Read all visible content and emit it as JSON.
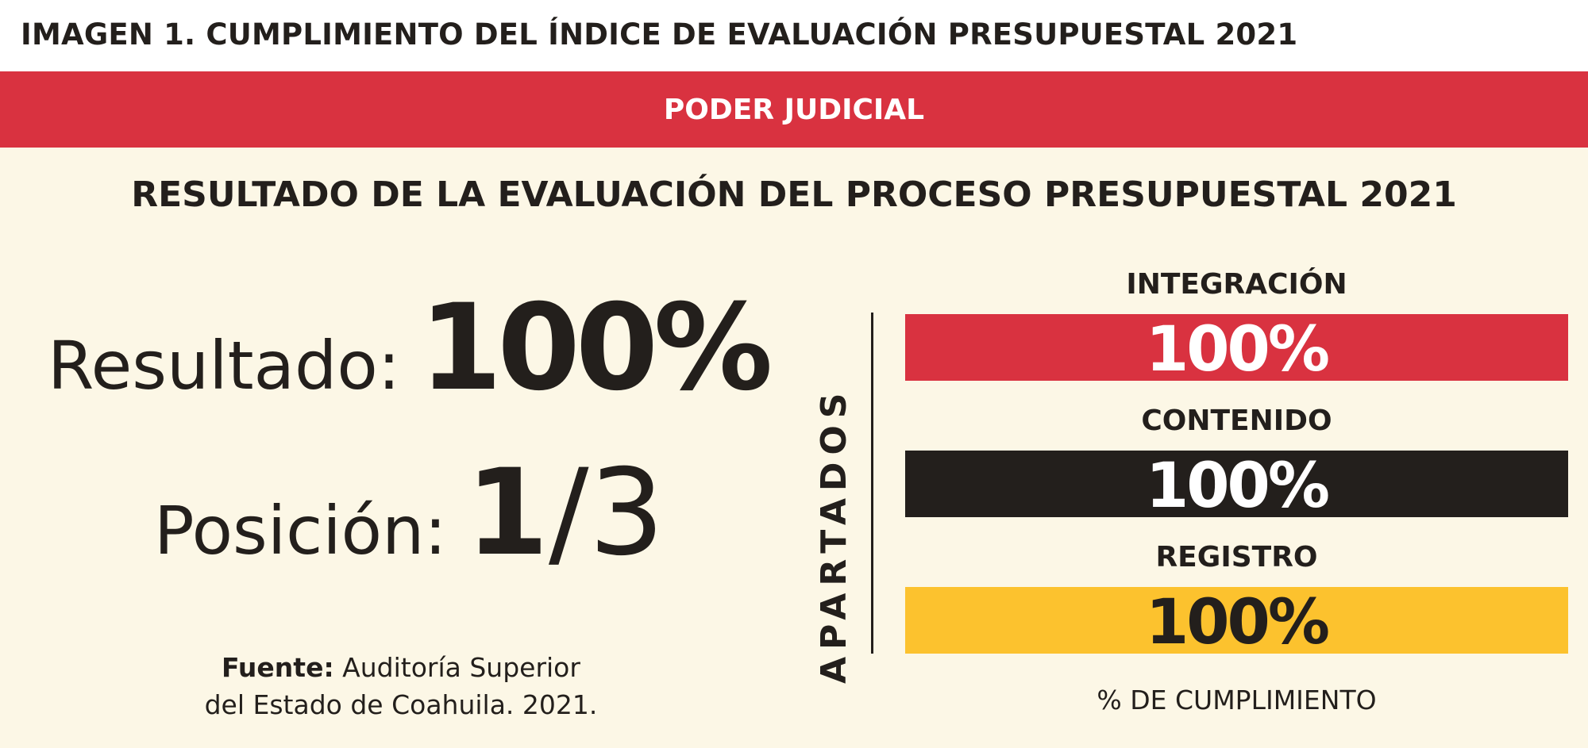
{
  "header": {
    "title": "IMAGEN 1. CUMPLIMIENTO DEL ÍNDICE DE EVALUACIÓN PRESUPUESTAL 2021"
  },
  "banner": {
    "label": "PODER JUDICIAL"
  },
  "subtitle": "RESULTADO DE LA EVALUACIÓN DEL PROCESO PRESUPUESTAL 2021",
  "result": {
    "label": "Resultado:",
    "value": "100%"
  },
  "position": {
    "label": "Posición:",
    "value_num": "1",
    "value_rest": "/3"
  },
  "source": {
    "label": "Fuente:",
    "text": "Auditoría Superior",
    "text2": "del Estado de Coahuila. 2021."
  },
  "colors": {
    "red": "#d93240",
    "black": "#231f1c",
    "yellow": "#fcc22e",
    "background": "#fcf7e6"
  },
  "chart_data": {
    "type": "bar",
    "orientation": "horizontal",
    "title": "RESULTADO DE LA EVALUACIÓN DEL PROCESO PRESUPUESTAL 2021",
    "ylabel": "APARTADOS",
    "xlabel": "% DE CUMPLIMIENTO",
    "categories": [
      "INTEGRACIÓN",
      "CONTENIDO",
      "REGISTRO"
    ],
    "values": [
      100,
      100,
      100
    ],
    "data_labels": [
      "100%",
      "100%",
      "100%"
    ],
    "bar_colors": [
      "#d93240",
      "#231f1c",
      "#fcc22e"
    ],
    "label_colors": [
      "#ffffff",
      "#ffffff",
      "#231f1c"
    ],
    "xlim": [
      0,
      100
    ]
  }
}
